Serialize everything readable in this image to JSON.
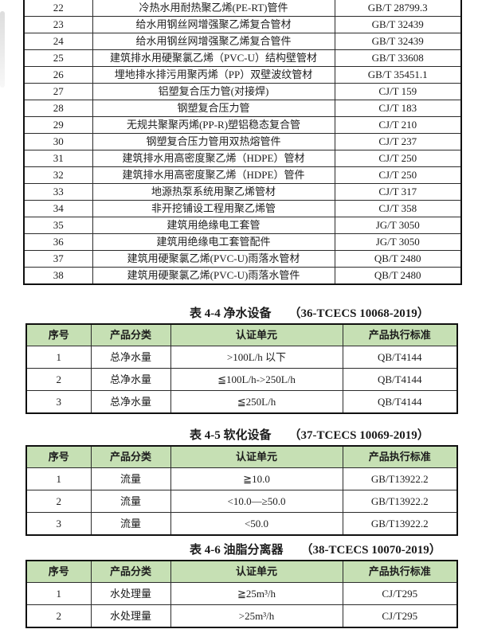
{
  "colors": {
    "header_bg": "#c6e0b4",
    "border_outer": "#101010",
    "border_inner": "#2b2b2b",
    "text": "#1c1c1c",
    "page_bg": "#ffffff"
  },
  "main_table": {
    "rows": [
      [
        "22",
        "冷热水用耐热聚乙烯(PE-RT)管件",
        "GB/T 28799.3"
      ],
      [
        "23",
        "给水用钢丝网增强聚乙烯复合管材",
        "GB/T 32439"
      ],
      [
        "24",
        "给水用钢丝网增强聚乙烯复合管件",
        "GB/T 32439"
      ],
      [
        "25",
        "建筑排水用硬聚氯乙烯（PVC-U）结构壁管材",
        "GB/T 33608"
      ],
      [
        "26",
        "埋地排水排污用聚丙烯（PP）双壁波纹管材",
        "GB/T 35451.1"
      ],
      [
        "27",
        "铝塑复合压力管(对接焊)",
        "CJ/T 159"
      ],
      [
        "28",
        "钢塑复合压力管",
        "CJ/T 183"
      ],
      [
        "29",
        "无规共聚聚丙烯(PP-R)塑铝稳态复合管",
        "CJ/T 210"
      ],
      [
        "30",
        "钢塑复合压力管用双热熔管件",
        "CJ/T 237"
      ],
      [
        "31",
        "建筑排水用高密度聚乙烯（HDPE）管材",
        "CJ/T 250"
      ],
      [
        "32",
        "建筑排水用高密度聚乙烯（HDPE）管件",
        "CJ/T 250"
      ],
      [
        "33",
        "地源热泵系统用聚乙烯管材",
        "CJ/T 317"
      ],
      [
        "34",
        "非开挖铺设工程用聚乙烯管",
        "CJ/T 358"
      ],
      [
        "35",
        "建筑用绝缘电工套管",
        "JG/T 3050"
      ],
      [
        "36",
        "建筑用绝缘电工套管配件",
        "JG/T 3050"
      ],
      [
        "37",
        "建筑用硬聚氯乙烯(PVC-U)雨落水管材",
        "QB/T 2480"
      ],
      [
        "38",
        "建筑用硬聚氯乙烯(PVC-U)雨落水管件",
        "QB/T 2480"
      ]
    ]
  },
  "sub_tables": [
    {
      "title": "表 4-4 净水设备",
      "code": "（36-TCECS 10068-2019）",
      "headers": [
        "序号",
        "产品分类",
        "认证单元",
        "产品执行标准"
      ],
      "rows": [
        [
          "1",
          "总净水量",
          ">100L/h 以下",
          "QB/T4144"
        ],
        [
          "2",
          "总净水量",
          "≦100L/h->250L/h",
          "QB/T4144"
        ],
        [
          "3",
          "总净水量",
          "≦250L/h",
          "QB/T4144"
        ]
      ]
    },
    {
      "title": "表 4-5 软化设备",
      "code": "（37-TCECS 10069-2019）",
      "headers": [
        "序号",
        "产品分类",
        "认证单元",
        "产品执行标准"
      ],
      "rows": [
        [
          "1",
          "流量",
          "≧10.0",
          "GB/T13922.2"
        ],
        [
          "2",
          "流量",
          "<10.0—≥50.0",
          "GB/T13922.2"
        ],
        [
          "3",
          "流量",
          "<50.0",
          "GB/T13922.2"
        ]
      ]
    },
    {
      "title": "表 4-6 油脂分离器",
      "code": "（38-TCECS 10070-2019）",
      "headers": [
        "序号",
        "产品分类",
        "认证单元",
        "产品执行标准"
      ],
      "rows": [
        [
          "1",
          "水处理量",
          "≧25m³/h",
          "CJ/T295"
        ],
        [
          "2",
          "水处理量",
          ">25m³/h",
          "CJ/T295"
        ]
      ]
    }
  ]
}
